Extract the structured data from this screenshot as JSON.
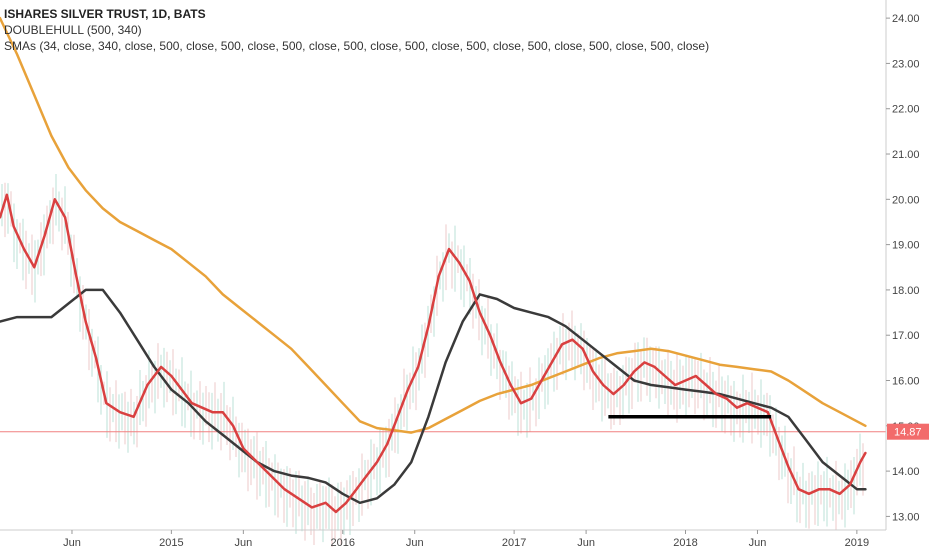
{
  "legend": {
    "title": "ISHARES SILVER TRUST, 1D, BATS",
    "line2": "DOUBLEHULL (500, 340)",
    "line3": "SMAs (34, close, 340, close, 500, close, 500, close, 500, close, 500, close, 500, close, 500, close, 500, close, 500, close, 500, close)"
  },
  "chart_data": {
    "type": "line",
    "ylim": [
      12.7,
      24.4
    ],
    "xlim": [
      2014.0,
      2019.17
    ],
    "y_ticks": [
      13.0,
      14.0,
      15.0,
      16.0,
      17.0,
      18.0,
      19.0,
      20.0,
      21.0,
      22.0,
      23.0,
      24.0
    ],
    "y_tick_labels": [
      "13.00",
      "14.00",
      "15.00",
      "16.00",
      "17.00",
      "18.00",
      "19.00",
      "20.00",
      "21.00",
      "22.00",
      "23.00",
      "24.00"
    ],
    "x_ticks": [
      {
        "label": "Jun",
        "x": 2014.42
      },
      {
        "label": "2015",
        "x": 2015.0
      },
      {
        "label": "Jun",
        "x": 2015.42
      },
      {
        "label": "2016",
        "x": 2016.0
      },
      {
        "label": "Jun",
        "x": 2016.42
      },
      {
        "label": "2017",
        "x": 2017.0
      },
      {
        "label": "Jun",
        "x": 2017.42
      },
      {
        "label": "2018",
        "x": 2018.0
      },
      {
        "label": "Jun",
        "x": 2018.42
      },
      {
        "label": "2019",
        "x": 2019.0
      }
    ],
    "last_price": 14.87,
    "last_price_label": "14.87",
    "support_line": {
      "x0": 2017.55,
      "x1": 2018.5,
      "y": 15.2,
      "color": "#000000"
    },
    "series": [
      {
        "color": "#e8a23a",
        "width": 2.5,
        "x": [
          2014.0,
          2014.1,
          2014.2,
          2014.3,
          2014.4,
          2014.5,
          2014.6,
          2014.7,
          2014.8,
          2014.9,
          2015.0,
          2015.1,
          2015.2,
          2015.3,
          2015.4,
          2015.5,
          2015.6,
          2015.7,
          2015.8,
          2015.9,
          2016.0,
          2016.1,
          2016.2,
          2016.3,
          2016.4,
          2016.5,
          2016.6,
          2016.7,
          2016.8,
          2016.9,
          2017.0,
          2017.1,
          2017.2,
          2017.3,
          2017.4,
          2017.5,
          2017.6,
          2017.7,
          2017.8,
          2017.9,
          2018.0,
          2018.1,
          2018.2,
          2018.3,
          2018.4,
          2018.5,
          2018.6,
          2018.7,
          2018.8,
          2018.9,
          2019.0,
          2019.05
        ],
        "values": [
          24.0,
          23.2,
          22.3,
          21.4,
          20.7,
          20.2,
          19.8,
          19.5,
          19.3,
          19.1,
          18.9,
          18.6,
          18.3,
          17.9,
          17.6,
          17.3,
          17.0,
          16.7,
          16.3,
          15.9,
          15.5,
          15.1,
          14.95,
          14.9,
          14.85,
          14.95,
          15.15,
          15.35,
          15.55,
          15.7,
          15.8,
          15.9,
          16.05,
          16.2,
          16.35,
          16.5,
          16.6,
          16.65,
          16.7,
          16.65,
          16.55,
          16.45,
          16.35,
          16.3,
          16.25,
          16.2,
          16.0,
          15.75,
          15.5,
          15.3,
          15.1,
          15.0
        ]
      },
      {
        "color": "#3a3a3a",
        "width": 2.5,
        "x": [
          2014.0,
          2014.1,
          2014.2,
          2014.3,
          2014.4,
          2014.5,
          2014.6,
          2014.7,
          2014.8,
          2014.9,
          2015.0,
          2015.1,
          2015.2,
          2015.3,
          2015.4,
          2015.5,
          2015.6,
          2015.7,
          2015.8,
          2015.9,
          2016.0,
          2016.1,
          2016.2,
          2016.3,
          2016.4,
          2016.5,
          2016.6,
          2016.7,
          2016.8,
          2016.9,
          2017.0,
          2017.1,
          2017.2,
          2017.3,
          2017.4,
          2017.5,
          2017.6,
          2017.7,
          2017.8,
          2017.9,
          2018.0,
          2018.1,
          2018.2,
          2018.3,
          2018.4,
          2018.5,
          2018.6,
          2018.7,
          2018.8,
          2018.9,
          2019.0,
          2019.05
        ],
        "values": [
          17.3,
          17.4,
          17.4,
          17.4,
          17.7,
          18.0,
          18.0,
          17.5,
          16.9,
          16.3,
          15.8,
          15.5,
          15.1,
          14.8,
          14.5,
          14.2,
          14.0,
          13.9,
          13.85,
          13.75,
          13.5,
          13.3,
          13.4,
          13.7,
          14.2,
          15.2,
          16.4,
          17.3,
          17.9,
          17.8,
          17.6,
          17.5,
          17.4,
          17.2,
          16.9,
          16.6,
          16.3,
          16.0,
          15.9,
          15.85,
          15.8,
          15.75,
          15.7,
          15.6,
          15.5,
          15.4,
          15.2,
          14.7,
          14.2,
          13.9,
          13.6,
          13.6
        ]
      },
      {
        "color": "#d94040",
        "width": 2.5,
        "x": [
          2014.0,
          2014.04,
          2014.08,
          2014.14,
          2014.2,
          2014.26,
          2014.32,
          2014.38,
          2014.44,
          2014.5,
          2014.56,
          2014.62,
          2014.7,
          2014.78,
          2014.86,
          2014.94,
          2015.0,
          2015.06,
          2015.12,
          2015.18,
          2015.24,
          2015.3,
          2015.36,
          2015.42,
          2015.5,
          2015.58,
          2015.66,
          2015.74,
          2015.82,
          2015.9,
          2015.96,
          2016.02,
          2016.08,
          2016.14,
          2016.2,
          2016.26,
          2016.32,
          2016.38,
          2016.44,
          2016.5,
          2016.56,
          2016.62,
          2016.68,
          2016.74,
          2016.8,
          2016.86,
          2016.92,
          2016.98,
          2017.04,
          2017.1,
          2017.16,
          2017.22,
          2017.28,
          2017.34,
          2017.4,
          2017.46,
          2017.52,
          2017.58,
          2017.64,
          2017.7,
          2017.76,
          2017.82,
          2017.88,
          2017.94,
          2018.0,
          2018.06,
          2018.12,
          2018.18,
          2018.24,
          2018.3,
          2018.36,
          2018.42,
          2018.48,
          2018.54,
          2018.6,
          2018.66,
          2018.72,
          2018.78,
          2018.84,
          2018.9,
          2018.96,
          2019.02,
          2019.05
        ],
        "values": [
          19.6,
          20.1,
          19.4,
          18.9,
          18.5,
          19.2,
          20.0,
          19.6,
          18.4,
          17.3,
          16.5,
          15.5,
          15.3,
          15.2,
          15.9,
          16.3,
          16.1,
          15.8,
          15.5,
          15.4,
          15.3,
          15.3,
          15.0,
          14.5,
          14.2,
          13.9,
          13.6,
          13.4,
          13.2,
          13.3,
          13.1,
          13.3,
          13.6,
          13.9,
          14.2,
          14.6,
          15.2,
          15.8,
          16.3,
          17.2,
          18.3,
          18.9,
          18.6,
          18.2,
          17.5,
          17.0,
          16.4,
          15.9,
          15.5,
          15.6,
          16.0,
          16.4,
          16.8,
          16.9,
          16.7,
          16.2,
          15.9,
          15.7,
          15.9,
          16.2,
          16.4,
          16.3,
          16.1,
          15.9,
          16.0,
          16.1,
          15.9,
          15.7,
          15.6,
          15.4,
          15.5,
          15.4,
          15.3,
          14.7,
          14.1,
          13.6,
          13.5,
          13.6,
          13.6,
          13.5,
          13.7,
          14.2,
          14.4
        ]
      }
    ]
  }
}
